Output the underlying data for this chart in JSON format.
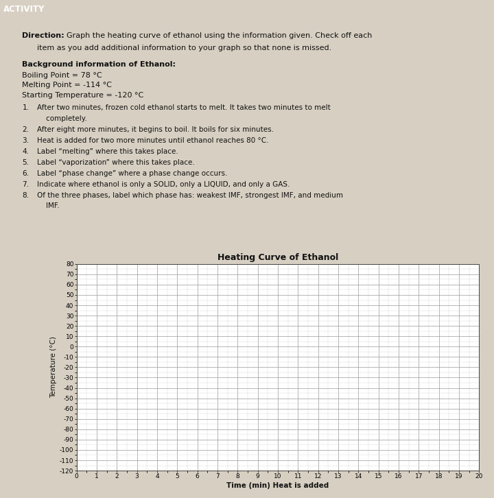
{
  "title": "Heating Curve of Ethanol",
  "xlabel": "Time (min) Heat is added",
  "ylabel": "Temperature (°C)",
  "xmin": 0,
  "xmax": 20,
  "ymin": -120,
  "ymax": 80,
  "yticks": [
    -120,
    -110,
    -100,
    -90,
    -80,
    -70,
    -60,
    -50,
    -40,
    -30,
    -20,
    -10,
    0,
    10,
    20,
    30,
    40,
    50,
    60,
    70,
    80
  ],
  "xticks": [
    0,
    1,
    2,
    3,
    4,
    5,
    6,
    7,
    8,
    9,
    10,
    11,
    12,
    13,
    14,
    15,
    16,
    17,
    18,
    19,
    20
  ],
  "grid_color": "#999999",
  "plot_bg_color": "#ffffff",
  "page_bg_color": "#d6cfc2",
  "text_color": "#111111",
  "minor_grid_color": "#cccccc",
  "title_fontsize": 9,
  "axis_label_fontsize": 7.5,
  "tick_fontsize": 6.5,
  "body_fontsize": 8.0,
  "small_fontsize": 7.5
}
